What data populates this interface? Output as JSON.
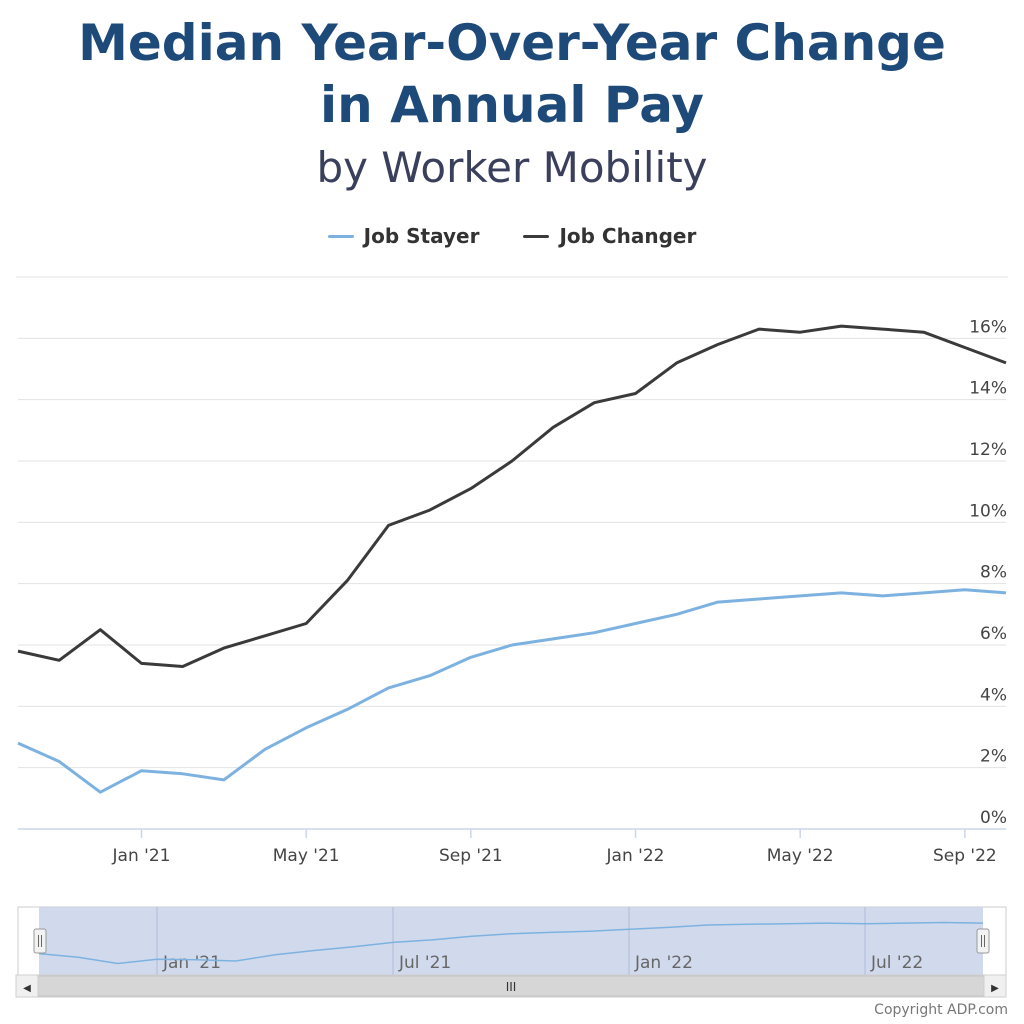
{
  "title_lines": [
    "Median Year-Over-Year Change",
    "in Annual Pay"
  ],
  "subtitle": "by Worker Mobility",
  "copyright": "Copyright ADP.com",
  "colors": {
    "job_stayer": "#7db2e0",
    "job_changer": "#3a3a3a",
    "title": "#1e4a7a",
    "navigator_fill": "#c9d3ea",
    "grid": "#e3e3e3"
  },
  "navigator": {
    "labels": [
      "Jan '21",
      "Jul '21",
      "Jan '22",
      "Jul '22"
    ],
    "scroll_handle_glyph": "III",
    "left_arrow": "◀",
    "right_arrow": "▶"
  },
  "chart_data": {
    "type": "line",
    "x": [
      "Oct '20",
      "Nov '20",
      "Dec '20",
      "Jan '21",
      "Feb '21",
      "Mar '21",
      "Apr '21",
      "May '21",
      "Jun '21",
      "Jul '21",
      "Aug '21",
      "Sep '21",
      "Oct '21",
      "Nov '21",
      "Dec '21",
      "Jan '22",
      "Feb '22",
      "Mar '22",
      "Apr '22",
      "May '22",
      "Jun '22",
      "Jul '22",
      "Aug '22",
      "Sep '22",
      "Oct '22"
    ],
    "x_tick_labels": [
      "Jan '21",
      "May '21",
      "Sep '21",
      "Jan '22",
      "May '22",
      "Sep '22"
    ],
    "x_tick_indices": [
      3,
      7,
      11,
      15,
      19,
      23
    ],
    "series": [
      {
        "name": "Job Stayer",
        "values": [
          2.8,
          2.2,
          1.2,
          1.9,
          1.8,
          1.6,
          2.6,
          3.3,
          3.9,
          4.6,
          5.0,
          5.6,
          6.0,
          6.2,
          6.4,
          6.7,
          7.0,
          7.4,
          7.5,
          7.6,
          7.7,
          7.6,
          7.7,
          7.8,
          7.7
        ]
      },
      {
        "name": "Job Changer",
        "values": [
          5.8,
          5.5,
          6.5,
          5.4,
          5.3,
          5.9,
          6.3,
          6.7,
          8.1,
          9.9,
          10.4,
          11.1,
          12.0,
          13.1,
          13.9,
          14.2,
          15.2,
          15.8,
          16.3,
          16.2,
          16.4,
          16.3,
          16.2,
          15.7,
          15.2
        ]
      }
    ],
    "y_ticks": [
      "0%",
      "2%",
      "4%",
      "6%",
      "8%",
      "10%",
      "12%",
      "14%",
      "16%"
    ],
    "ylim": [
      0,
      18
    ],
    "grid": true,
    "legend_position": "top-center"
  }
}
